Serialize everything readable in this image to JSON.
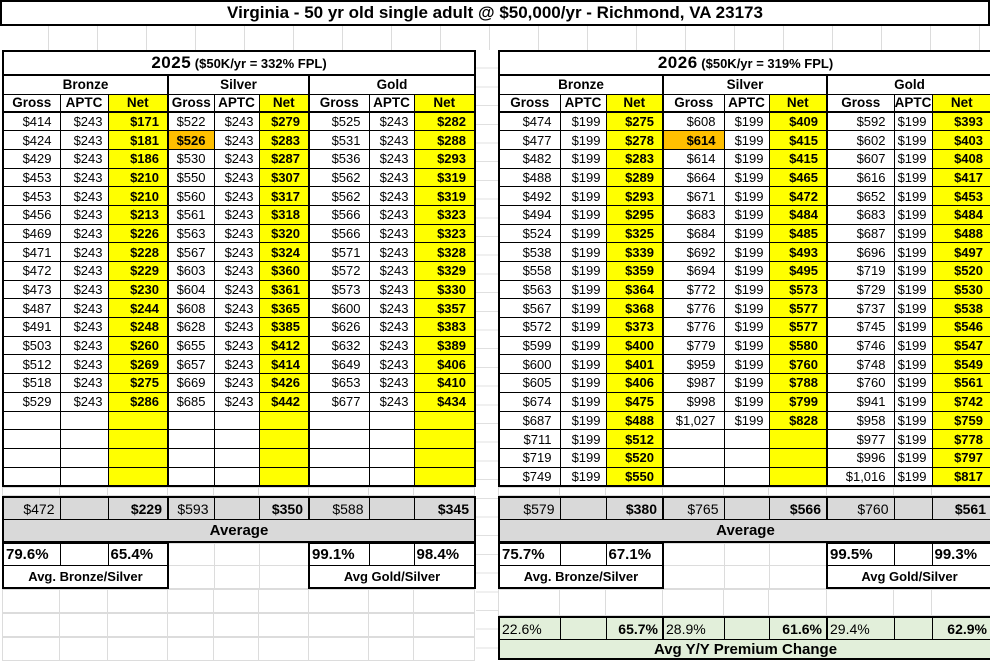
{
  "title": "Virginia - 50 yr old single adult @ $50,000/yr - Richmond, VA 23173",
  "colors": {
    "net_highlight": "#FFFF00",
    "benchmark_highlight": "#FFC000",
    "average_bg": "#D9D9D9",
    "yoy_bg": "#E2EFDA"
  },
  "metal_headers": [
    "Bronze",
    "Silver",
    "Gold"
  ],
  "column_headers": [
    "Gross",
    "APTC",
    "Net"
  ],
  "tables": [
    {
      "year": "2025",
      "fpl_note": "($50K/yr = 332% FPL)",
      "flagged_cell": {
        "row": 1,
        "col": 3
      },
      "rows": [
        [
          "$414",
          "$243",
          "$171",
          "$522",
          "$243",
          "$279",
          "$525",
          "$243",
          "$282"
        ],
        [
          "$424",
          "$243",
          "$181",
          "$526",
          "$243",
          "$283",
          "$531",
          "$243",
          "$288"
        ],
        [
          "$429",
          "$243",
          "$186",
          "$530",
          "$243",
          "$287",
          "$536",
          "$243",
          "$293"
        ],
        [
          "$453",
          "$243",
          "$210",
          "$550",
          "$243",
          "$307",
          "$562",
          "$243",
          "$319"
        ],
        [
          "$453",
          "$243",
          "$210",
          "$560",
          "$243",
          "$317",
          "$562",
          "$243",
          "$319"
        ],
        [
          "$456",
          "$243",
          "$213",
          "$561",
          "$243",
          "$318",
          "$566",
          "$243",
          "$323"
        ],
        [
          "$469",
          "$243",
          "$226",
          "$563",
          "$243",
          "$320",
          "$566",
          "$243",
          "$323"
        ],
        [
          "$471",
          "$243",
          "$228",
          "$567",
          "$243",
          "$324",
          "$571",
          "$243",
          "$328"
        ],
        [
          "$472",
          "$243",
          "$229",
          "$603",
          "$243",
          "$360",
          "$572",
          "$243",
          "$329"
        ],
        [
          "$473",
          "$243",
          "$230",
          "$604",
          "$243",
          "$361",
          "$573",
          "$243",
          "$330"
        ],
        [
          "$487",
          "$243",
          "$244",
          "$608",
          "$243",
          "$365",
          "$600",
          "$243",
          "$357"
        ],
        [
          "$491",
          "$243",
          "$248",
          "$628",
          "$243",
          "$385",
          "$626",
          "$243",
          "$383"
        ],
        [
          "$503",
          "$243",
          "$260",
          "$655",
          "$243",
          "$412",
          "$632",
          "$243",
          "$389"
        ],
        [
          "$512",
          "$243",
          "$269",
          "$657",
          "$243",
          "$414",
          "$649",
          "$243",
          "$406"
        ],
        [
          "$518",
          "$243",
          "$275",
          "$669",
          "$243",
          "$426",
          "$653",
          "$243",
          "$410"
        ],
        [
          "$529",
          "$243",
          "$286",
          "$685",
          "$243",
          "$442",
          "$677",
          "$243",
          "$434"
        ],
        [
          "",
          "",
          "",
          "",
          "",
          "",
          "",
          "",
          ""
        ],
        [
          "",
          "",
          "",
          "",
          "",
          "",
          "",
          "",
          ""
        ],
        [
          "",
          "",
          "",
          "",
          "",
          "",
          "",
          "",
          ""
        ],
        [
          "",
          "",
          "",
          "",
          "",
          "",
          "",
          "",
          ""
        ]
      ],
      "summary": {
        "avg_values": [
          "$472",
          "",
          "$229",
          "$593",
          "",
          "$350",
          "$588",
          "",
          "$345"
        ],
        "avg_label": "Average",
        "ratio_values": [
          "79.6%",
          "",
          "65.4%",
          "99.1%",
          "",
          "98.4%"
        ],
        "bronze_silver_label": "Avg. Bronze/Silver",
        "gold_silver_label": "Avg Gold/Silver"
      }
    },
    {
      "year": "2026",
      "fpl_note": "($50K/yr = 319% FPL)",
      "flagged_cell": {
        "row": 1,
        "col": 3
      },
      "rows": [
        [
          "$474",
          "$199",
          "$275",
          "$608",
          "$199",
          "$409",
          "$592",
          "$199",
          "$393"
        ],
        [
          "$477",
          "$199",
          "$278",
          "$614",
          "$199",
          "$415",
          "$602",
          "$199",
          "$403"
        ],
        [
          "$482",
          "$199",
          "$283",
          "$614",
          "$199",
          "$415",
          "$607",
          "$199",
          "$408"
        ],
        [
          "$488",
          "$199",
          "$289",
          "$664",
          "$199",
          "$465",
          "$616",
          "$199",
          "$417"
        ],
        [
          "$492",
          "$199",
          "$293",
          "$671",
          "$199",
          "$472",
          "$652",
          "$199",
          "$453"
        ],
        [
          "$494",
          "$199",
          "$295",
          "$683",
          "$199",
          "$484",
          "$683",
          "$199",
          "$484"
        ],
        [
          "$524",
          "$199",
          "$325",
          "$684",
          "$199",
          "$485",
          "$687",
          "$199",
          "$488"
        ],
        [
          "$538",
          "$199",
          "$339",
          "$692",
          "$199",
          "$493",
          "$696",
          "$199",
          "$497"
        ],
        [
          "$558",
          "$199",
          "$359",
          "$694",
          "$199",
          "$495",
          "$719",
          "$199",
          "$520"
        ],
        [
          "$563",
          "$199",
          "$364",
          "$772",
          "$199",
          "$573",
          "$729",
          "$199",
          "$530"
        ],
        [
          "$567",
          "$199",
          "$368",
          "$776",
          "$199",
          "$577",
          "$737",
          "$199",
          "$538"
        ],
        [
          "$572",
          "$199",
          "$373",
          "$776",
          "$199",
          "$577",
          "$745",
          "$199",
          "$546"
        ],
        [
          "$599",
          "$199",
          "$400",
          "$779",
          "$199",
          "$580",
          "$746",
          "$199",
          "$547"
        ],
        [
          "$600",
          "$199",
          "$401",
          "$959",
          "$199",
          "$760",
          "$748",
          "$199",
          "$549"
        ],
        [
          "$605",
          "$199",
          "$406",
          "$987",
          "$199",
          "$788",
          "$760",
          "$199",
          "$561"
        ],
        [
          "$674",
          "$199",
          "$475",
          "$998",
          "$199",
          "$799",
          "$941",
          "$199",
          "$742"
        ],
        [
          "$687",
          "$199",
          "$488",
          "$1,027",
          "$199",
          "$828",
          "$958",
          "$199",
          "$759"
        ],
        [
          "$711",
          "$199",
          "$512",
          "",
          "",
          "",
          "$977",
          "$199",
          "$778"
        ],
        [
          "$719",
          "$199",
          "$520",
          "",
          "",
          "",
          "$996",
          "$199",
          "$797"
        ],
        [
          "$749",
          "$199",
          "$550",
          "",
          "",
          "",
          "$1,016",
          "$199",
          "$817"
        ]
      ],
      "summary": {
        "avg_values": [
          "$579",
          "",
          "$380",
          "$765",
          "",
          "$566",
          "$760",
          "",
          "$561"
        ],
        "avg_label": "Average",
        "ratio_values": [
          "75.7%",
          "",
          "67.1%",
          "99.5%",
          "",
          "99.3%"
        ],
        "bronze_silver_label": "Avg. Bronze/Silver",
        "gold_silver_label": "Avg Gold/Silver"
      },
      "yoy": {
        "values": [
          "22.6%",
          "",
          "65.7%",
          "28.9%",
          "",
          "61.6%",
          "29.4%",
          "",
          "62.9%"
        ],
        "label": "Avg Y/Y Premium Change"
      }
    }
  ]
}
